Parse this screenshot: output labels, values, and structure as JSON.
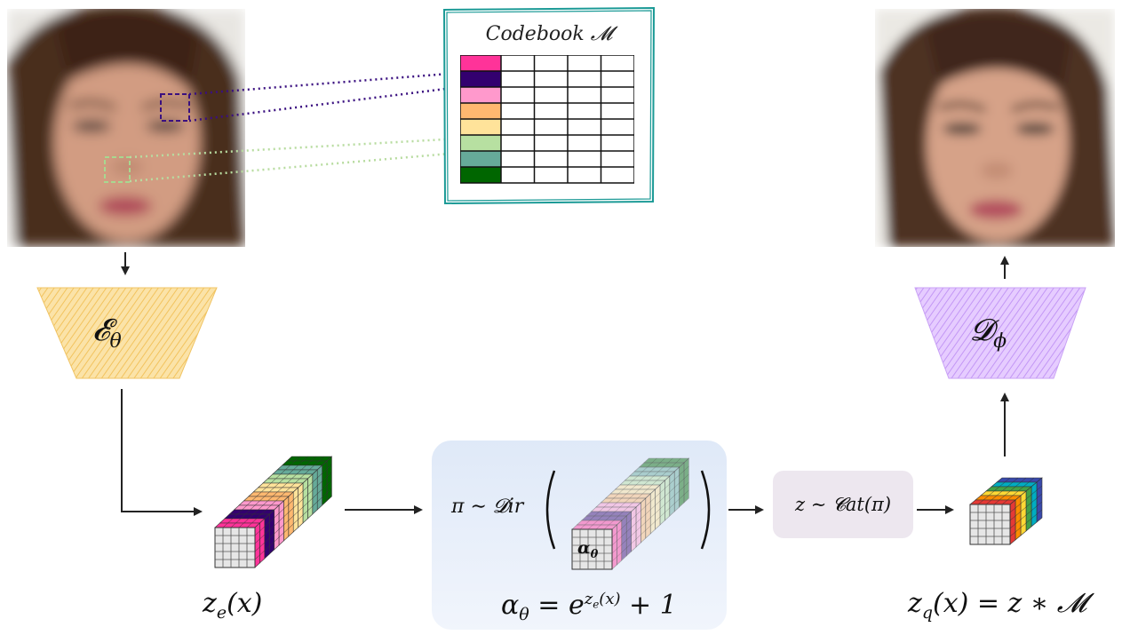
{
  "codebook": {
    "title": "Codebook 𝓜",
    "colors": [
      "#ff3399",
      "#33006f",
      "#ff99cc",
      "#ffb870",
      "#ffe39a",
      "#b7e0a1",
      "#66aa99",
      "#006600"
    ]
  },
  "encoder": {
    "label": "𝓔",
    "sub": "θ",
    "color": "#f8d57e"
  },
  "decoder": {
    "label": "𝓓",
    "sub": "ϕ",
    "color": "#d9b3ff"
  },
  "labels": {
    "ze": "z",
    "ze_sub": "e",
    "ze_arg": "(x)",
    "dirichlet_prefix": "π ∼ 𝓓ir",
    "alpha_label": "α",
    "alpha_sub": "θ",
    "alpha_eq_lhs": "α",
    "alpha_eq_sub": "θ",
    "alpha_eq_mid": "= e",
    "alpha_eq_sup": "z",
    "alpha_eq_supsub": "e",
    "alpha_eq_suparg": "(x)",
    "alpha_eq_tail": "+ 1",
    "categorical": "z ∼ 𝓒at(π)",
    "zq": "z",
    "zq_sub": "q",
    "zq_rhs": "(x) = z ∗ 𝓜"
  }
}
